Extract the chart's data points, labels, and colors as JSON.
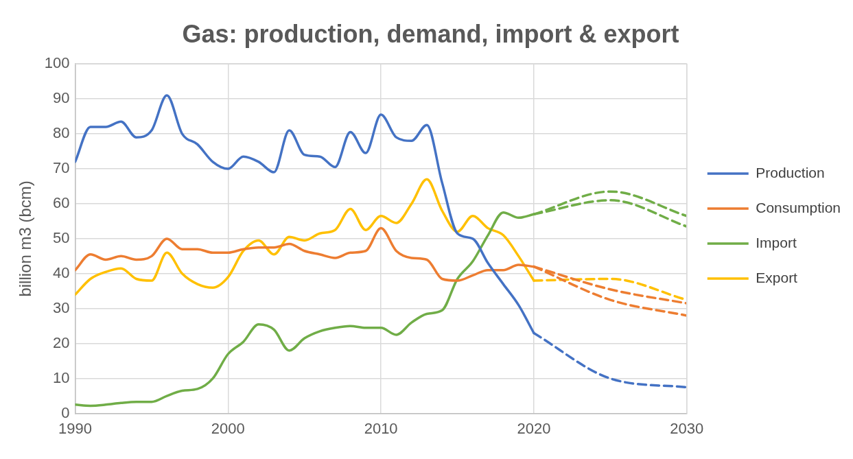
{
  "chart_data": {
    "type": "line",
    "title": "Gas: production, demand, import & export",
    "ylabel": "billion m3 (bcm)",
    "xlim": [
      1990,
      2030
    ],
    "xticks": [
      1990,
      2000,
      2010,
      2020,
      2030
    ],
    "ylim": [
      0,
      100
    ],
    "yticks": [
      0,
      10,
      20,
      30,
      40,
      50,
      60,
      70,
      80,
      90,
      100
    ],
    "grid": true,
    "legend": "right",
    "marker": "none",
    "series": [
      {
        "name": "Production",
        "color": "#4472c4",
        "x": [
          1990,
          1991,
          1992,
          1993,
          1994,
          1995,
          1996,
          1997,
          1998,
          1999,
          2000,
          2001,
          2002,
          2003,
          2004,
          2005,
          2006,
          2007,
          2008,
          2009,
          2010,
          2011,
          2012,
          2013,
          2014,
          2015,
          2016,
          2017,
          2018,
          2019,
          2020
        ],
        "values": [
          72,
          82,
          82,
          83.5,
          79,
          81,
          91,
          80,
          77,
          72,
          70,
          73.5,
          72,
          69,
          81,
          74,
          73.5,
          70.5,
          80.5,
          74.5,
          85.5,
          79,
          78,
          82.5,
          66,
          51.5,
          50,
          43,
          37,
          31,
          23
        ]
      },
      {
        "name": "Consumption",
        "color": "#ed7d31",
        "x": [
          1990,
          1991,
          1992,
          1993,
          1994,
          1995,
          1996,
          1997,
          1998,
          1999,
          2000,
          2001,
          2002,
          2003,
          2004,
          2005,
          2006,
          2007,
          2008,
          2009,
          2010,
          2011,
          2012,
          2013,
          2014,
          2015,
          2016,
          2017,
          2018,
          2019,
          2020
        ],
        "values": [
          41,
          45.5,
          44,
          45,
          44,
          45,
          50,
          47,
          47,
          46,
          46,
          47,
          47.5,
          47.5,
          48.5,
          46.5,
          45.5,
          44.5,
          46,
          46.5,
          53,
          46.5,
          44.5,
          44,
          38.5,
          38,
          39.5,
          41,
          41,
          42.5,
          42
        ]
      },
      {
        "name": "Import",
        "color": "#70ad47",
        "x": [
          1990,
          1991,
          1992,
          1993,
          1994,
          1995,
          1996,
          1997,
          1998,
          1999,
          2000,
          2001,
          2002,
          2003,
          2004,
          2005,
          2006,
          2007,
          2008,
          2009,
          2010,
          2011,
          2012,
          2013,
          2014,
          2015,
          2016,
          2017,
          2018,
          2019,
          2020
        ],
        "values": [
          2.5,
          2.2,
          2.5,
          3,
          3.3,
          3.3,
          5,
          6.5,
          7,
          10,
          17,
          20.5,
          25.5,
          24,
          18,
          21.5,
          23.5,
          24.5,
          25,
          24.5,
          24.5,
          22.5,
          26,
          28.5,
          29.5,
          38.5,
          43.5,
          51,
          57.5,
          56,
          57
        ]
      },
      {
        "name": "Export",
        "color": "#ffc000",
        "x": [
          1990,
          1991,
          1992,
          1993,
          1994,
          1995,
          1996,
          1997,
          1998,
          1999,
          2000,
          2001,
          2002,
          2003,
          2004,
          2005,
          2006,
          2007,
          2008,
          2009,
          2010,
          2011,
          2012,
          2013,
          2014,
          2015,
          2016,
          2017,
          2018,
          2019,
          2020
        ],
        "values": [
          34,
          38.5,
          40.5,
          41.5,
          38.5,
          38,
          46,
          40,
          37,
          36,
          39,
          46.5,
          49.5,
          45.5,
          50.5,
          49.5,
          51.5,
          52.5,
          58.5,
          52.5,
          56.5,
          54.5,
          60,
          67,
          58,
          52,
          56.5,
          53,
          51,
          45,
          38
        ]
      },
      {
        "color": "#4472c4",
        "line_style": "dashed",
        "x": [
          2020,
          2025,
          2030
        ],
        "values": [
          23,
          10,
          7.5
        ]
      },
      {
        "color": "#ed7d31",
        "line_style": "dashed",
        "x": [
          2020,
          2025,
          2030
        ],
        "values": [
          42,
          35.5,
          31.5
        ]
      },
      {
        "color": "#ed7d31",
        "line_style": "dashed",
        "x": [
          2020,
          2025,
          2030
        ],
        "values": [
          42,
          32.5,
          28
        ]
      },
      {
        "color": "#70ad47",
        "line_style": "dashed",
        "x": [
          2020,
          2025,
          2030
        ],
        "values": [
          57,
          63.5,
          56.5
        ]
      },
      {
        "color": "#70ad47",
        "line_style": "dashed",
        "x": [
          2020,
          2025,
          2030
        ],
        "values": [
          57,
          61,
          53.5
        ]
      },
      {
        "color": "#ffc000",
        "line_style": "dashed",
        "x": [
          2020,
          2025,
          2030
        ],
        "values": [
          38,
          38.5,
          32.5
        ]
      }
    ]
  }
}
